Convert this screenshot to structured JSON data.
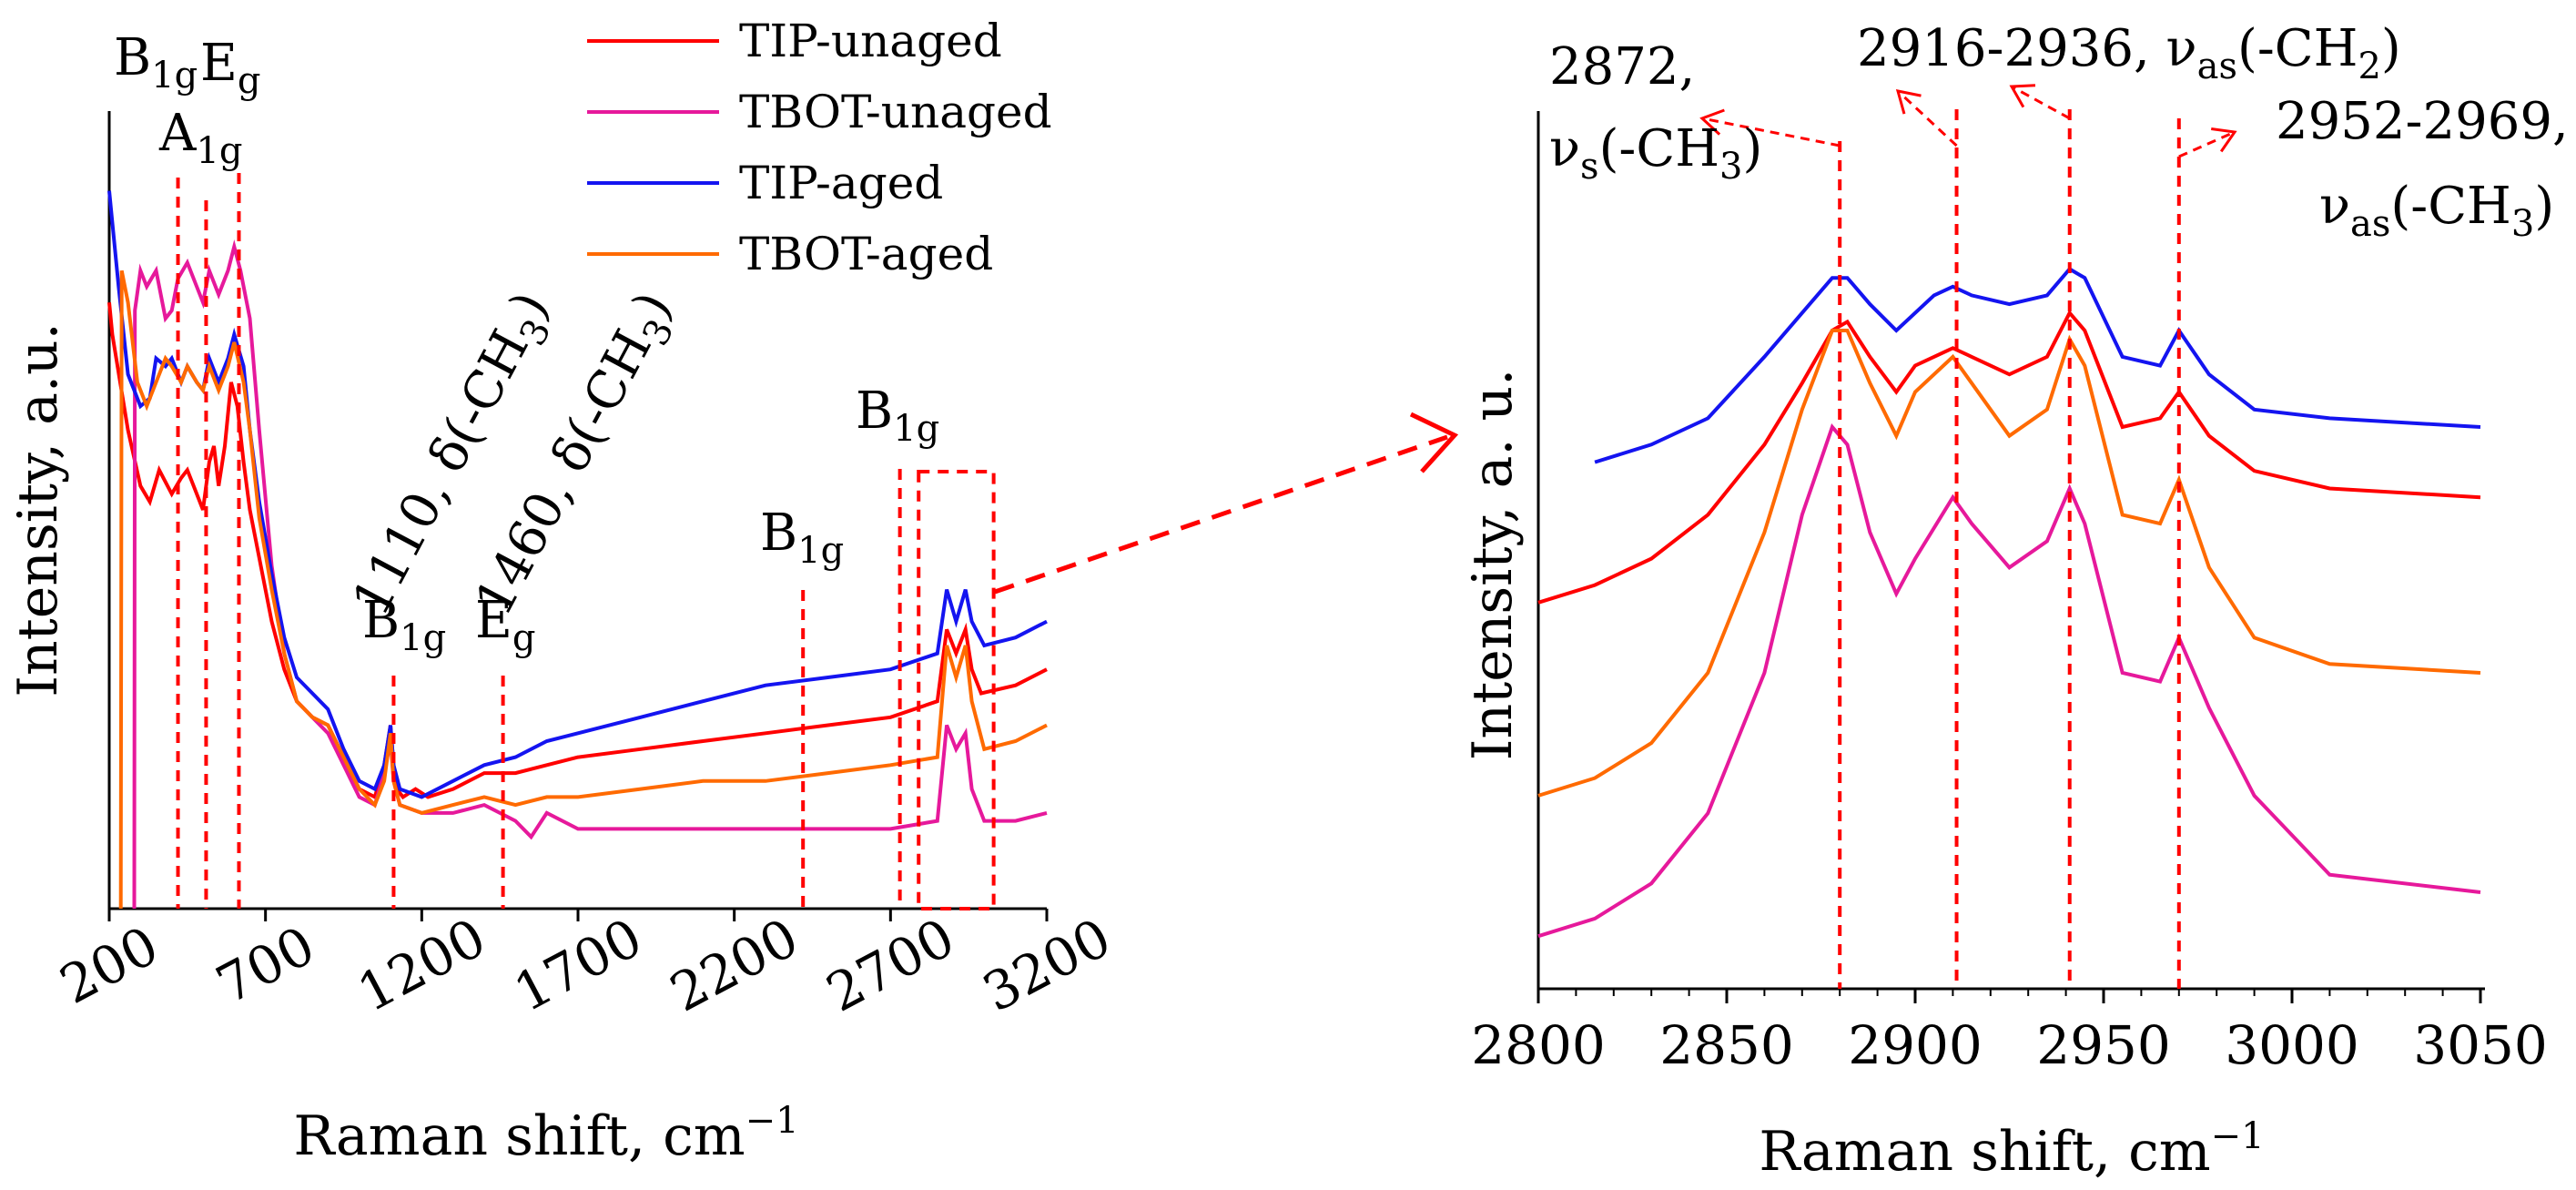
{
  "series_colors": {
    "TIP-unaged": "#ff0000",
    "TBOT-unaged": "#e6199b",
    "TIP-aged": "#1414f0",
    "TBOT-aged": "#ff6a00"
  },
  "annotation_color": "#ff0000",
  "chart_data": [
    {
      "type": "line",
      "title": "",
      "xlabel": "Raman shift, cm",
      "xlabel_sup": "−1",
      "ylabel": "Intensity, a.u.",
      "xlim": [
        200,
        3200
      ],
      "ylim": [
        0,
        10
      ],
      "xticks": [
        "200",
        "700",
        "1200",
        "1700",
        "2200",
        "2700",
        "3200"
      ],
      "legend": [
        "TIP-unaged",
        "TBOT-unaged",
        "TIP-aged",
        "TBOT-aged"
      ],
      "series": [
        {
          "name": "TIP-unaged",
          "x": [
            200,
            210,
            260,
            300,
            330,
            345,
            360,
            400,
            430,
            450,
            470,
            500,
            520,
            535,
            550,
            570,
            590,
            610,
            630,
            650,
            680,
            720,
            760,
            800,
            850,
            900,
            950,
            1000,
            1050,
            1080,
            1100,
            1110,
            1120,
            1140,
            1180,
            1220,
            1300,
            1400,
            1500,
            1600,
            1700,
            1900,
            2100,
            2300,
            2500,
            2700,
            2850,
            2880,
            2910,
            2940,
            2960,
            2990,
            3100,
            3200
          ],
          "y": [
            7.6,
            7.2,
            6.0,
            5.3,
            5.1,
            5.3,
            5.5,
            5.2,
            5.4,
            5.5,
            5.3,
            5.0,
            5.6,
            5.8,
            5.3,
            5.8,
            6.6,
            6.3,
            5.6,
            5.0,
            4.4,
            3.6,
            3.0,
            2.6,
            2.4,
            2.3,
            1.9,
            1.5,
            1.4,
            1.8,
            2.3,
            1.8,
            1.5,
            1.4,
            1.5,
            1.4,
            1.5,
            1.7,
            1.7,
            1.8,
            1.9,
            2.0,
            2.1,
            2.2,
            2.3,
            2.4,
            2.6,
            3.5,
            3.2,
            3.5,
            3.0,
            2.7,
            2.8,
            3.0
          ]
        },
        {
          "name": "TBOT-unaged",
          "x": [
            280,
            282,
            300,
            320,
            350,
            380,
            400,
            420,
            450,
            480,
            500,
            520,
            550,
            580,
            600,
            620,
            650,
            680,
            720,
            760,
            800,
            850,
            900,
            950,
            1000,
            1050,
            1080,
            1100,
            1110,
            1130,
            1200,
            1300,
            1400,
            1500,
            1550,
            1600,
            1700,
            1900,
            2100,
            2300,
            2500,
            2700,
            2850,
            2880,
            2910,
            2940,
            2960,
            3000,
            3100,
            3200
          ],
          "y": [
            0,
            7.5,
            8.0,
            7.8,
            8.0,
            7.4,
            7.5,
            7.9,
            8.1,
            7.8,
            7.6,
            8.0,
            7.7,
            8.0,
            8.3,
            8.0,
            7.4,
            6.0,
            4.3,
            3.2,
            2.6,
            2.4,
            2.2,
            1.8,
            1.4,
            1.3,
            1.7,
            2.1,
            1.6,
            1.3,
            1.2,
            1.2,
            1.3,
            1.1,
            0.9,
            1.2,
            1.0,
            1.0,
            1.0,
            1.0,
            1.0,
            1.0,
            1.1,
            2.3,
            2.0,
            2.2,
            1.5,
            1.1,
            1.1,
            1.2
          ]
        },
        {
          "name": "TIP-aged",
          "x": [
            200,
            230,
            260,
            300,
            330,
            350,
            380,
            400,
            430,
            450,
            480,
            500,
            520,
            550,
            580,
            600,
            630,
            650,
            680,
            720,
            760,
            800,
            850,
            900,
            950,
            1000,
            1050,
            1080,
            1100,
            1110,
            1130,
            1200,
            1300,
            1400,
            1500,
            1600,
            1700,
            1900,
            2100,
            2300,
            2500,
            2700,
            2850,
            2880,
            2910,
            2940,
            2960,
            3000,
            3100,
            3200
          ],
          "y": [
            9.0,
            7.8,
            6.7,
            6.3,
            6.4,
            6.9,
            6.8,
            6.9,
            6.6,
            6.8,
            6.6,
            6.5,
            6.9,
            6.6,
            6.9,
            7.2,
            6.8,
            6.0,
            5.1,
            4.2,
            3.4,
            2.9,
            2.7,
            2.5,
            2.0,
            1.6,
            1.5,
            1.8,
            2.3,
            1.8,
            1.5,
            1.4,
            1.6,
            1.8,
            1.9,
            2.1,
            2.2,
            2.4,
            2.6,
            2.8,
            2.9,
            3.0,
            3.2,
            4.0,
            3.6,
            4.0,
            3.6,
            3.3,
            3.4,
            3.6
          ]
        },
        {
          "name": "TBOT-aged",
          "x": [
            237,
            240,
            260,
            290,
            320,
            350,
            380,
            400,
            430,
            450,
            480,
            500,
            520,
            550,
            580,
            600,
            630,
            650,
            680,
            720,
            760,
            800,
            850,
            900,
            950,
            1000,
            1050,
            1080,
            1100,
            1110,
            1130,
            1200,
            1300,
            1400,
            1500,
            1600,
            1700,
            1900,
            2100,
            2300,
            2500,
            2700,
            2850,
            2880,
            2910,
            2940,
            2960,
            3000,
            3100,
            3200
          ],
          "y": [
            0,
            8.0,
            7.6,
            6.6,
            6.3,
            6.6,
            6.9,
            6.8,
            6.6,
            6.8,
            6.6,
            6.5,
            6.8,
            6.5,
            6.8,
            7.1,
            6.6,
            6.0,
            4.9,
            4.0,
            3.2,
            2.6,
            2.4,
            2.3,
            1.9,
            1.5,
            1.3,
            1.6,
            2.2,
            1.6,
            1.3,
            1.2,
            1.3,
            1.4,
            1.3,
            1.4,
            1.4,
            1.5,
            1.6,
            1.6,
            1.7,
            1.8,
            1.9,
            3.3,
            2.9,
            3.3,
            2.6,
            2.0,
            2.1,
            2.3
          ]
        }
      ],
      "annotations": [
        {
          "id": "b1g-low",
          "x": 420,
          "base": "B",
          "sub": "1g"
        },
        {
          "id": "a1g",
          "x": 510,
          "base": "A",
          "sub": "1g"
        },
        {
          "id": "eg-low",
          "x": 615,
          "base": "E",
          "sub": "g"
        },
        {
          "id": "b1g-1110",
          "x": 1110,
          "base": "B",
          "sub": "1g"
        },
        {
          "id": "eg-1460",
          "x": 1460,
          "base": "E",
          "sub": "g"
        },
        {
          "id": "b1g-2420",
          "x": 2420,
          "base": "B",
          "sub": "1g"
        },
        {
          "id": "b1g-2730",
          "x": 2730,
          "base": "B",
          "sub": "1g"
        }
      ],
      "rotated_labels": [
        "1110, δ(-CH",
        "1460, δ(-CH"
      ],
      "rotated_label_sub": "3",
      "rotated_label_close": ")",
      "zoom_box_x": [
        2790,
        3030
      ]
    },
    {
      "type": "line",
      "title": "",
      "xlabel": "Raman shift, cm",
      "xlabel_sup": "−1",
      "ylabel": "Intensity, a. u.",
      "xlim": [
        2800,
        3050
      ],
      "ylim": [
        0,
        10
      ],
      "xticks": [
        "2800",
        "2850",
        "2900",
        "2950",
        "3000",
        "3050"
      ],
      "series": [
        {
          "name": "TIP-aged",
          "x": [
            2815,
            2830,
            2845,
            2860,
            2870,
            2878,
            2882,
            2888,
            2895,
            2905,
            2910,
            2915,
            2925,
            2935,
            2941,
            2945,
            2955,
            2965,
            2970,
            2978,
            2990,
            3010,
            3050
          ],
          "y": [
            6.0,
            6.2,
            6.5,
            7.2,
            7.7,
            8.1,
            8.1,
            7.8,
            7.5,
            7.9,
            8.0,
            7.9,
            7.8,
            7.9,
            8.2,
            8.1,
            7.2,
            7.1,
            7.5,
            7.0,
            6.6,
            6.5,
            6.4
          ]
        },
        {
          "name": "TIP-unaged",
          "x": [
            2800,
            2815,
            2830,
            2845,
            2860,
            2870,
            2878,
            2882,
            2888,
            2895,
            2900,
            2910,
            2915,
            2925,
            2935,
            2941,
            2945,
            2955,
            2965,
            2970,
            2978,
            2990,
            3010,
            3050
          ],
          "y": [
            4.4,
            4.6,
            4.9,
            5.4,
            6.2,
            6.9,
            7.5,
            7.6,
            7.2,
            6.8,
            7.1,
            7.3,
            7.2,
            7.0,
            7.2,
            7.7,
            7.5,
            6.4,
            6.5,
            6.8,
            6.3,
            5.9,
            5.7,
            5.6
          ]
        },
        {
          "name": "TBOT-aged",
          "x": [
            2800,
            2815,
            2830,
            2845,
            2860,
            2870,
            2878,
            2882,
            2888,
            2895,
            2900,
            2910,
            2915,
            2925,
            2935,
            2941,
            2945,
            2955,
            2965,
            2970,
            2978,
            2990,
            3010,
            3050
          ],
          "y": [
            2.2,
            2.4,
            2.8,
            3.6,
            5.2,
            6.6,
            7.5,
            7.5,
            6.9,
            6.3,
            6.8,
            7.2,
            6.9,
            6.3,
            6.6,
            7.4,
            7.1,
            5.4,
            5.3,
            5.8,
            4.8,
            4.0,
            3.7,
            3.6
          ]
        },
        {
          "name": "TBOT-unaged",
          "x": [
            2800,
            2815,
            2830,
            2845,
            2860,
            2870,
            2878,
            2882,
            2888,
            2895,
            2900,
            2910,
            2915,
            2925,
            2935,
            2941,
            2945,
            2955,
            2965,
            2970,
            2978,
            2990,
            3010,
            3050
          ],
          "y": [
            0.6,
            0.8,
            1.2,
            2.0,
            3.6,
            5.4,
            6.4,
            6.2,
            5.2,
            4.5,
            4.9,
            5.6,
            5.3,
            4.8,
            5.1,
            5.7,
            5.3,
            3.6,
            3.5,
            4.0,
            3.2,
            2.2,
            1.3,
            1.1
          ]
        }
      ],
      "peak_lines_x": [
        2880,
        2911,
        2941,
        2970
      ],
      "annotations": [
        {
          "id": "2872",
          "text": "2872,",
          "text2": "ν",
          "sub2": "s",
          "tail2": "(-CH",
          "sub3": "3",
          "close": ")"
        },
        {
          "id": "2916",
          "text": "2916-2936, ν",
          "sub": "as",
          "tail": "(-CH",
          "sub2": "2",
          "close": ")"
        },
        {
          "id": "2952",
          "text": "2952-2969,",
          "text2": "ν",
          "sub2": "as",
          "tail2": "(-CH",
          "sub3": "3",
          "close": ")"
        }
      ]
    }
  ]
}
